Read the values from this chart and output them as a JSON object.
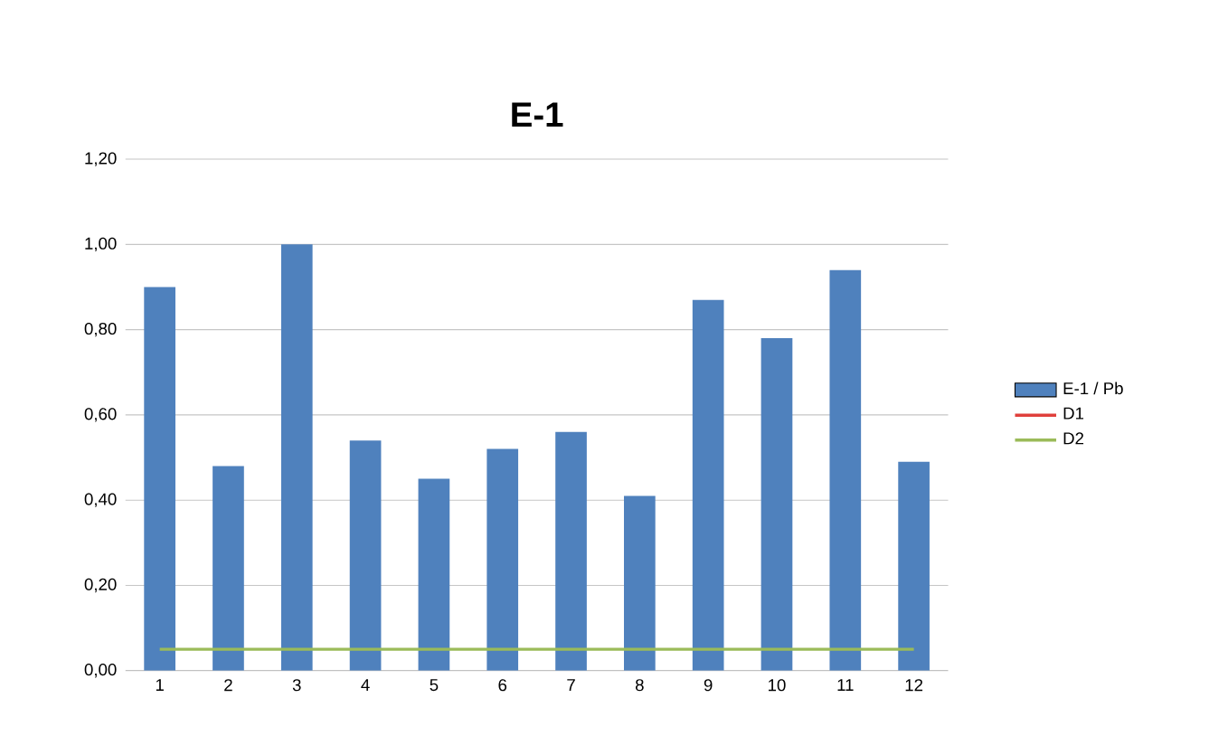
{
  "chart_data": {
    "type": "bar",
    "title": "E-1",
    "categories": [
      "1",
      "2",
      "3",
      "4",
      "5",
      "6",
      "7",
      "8",
      "9",
      "10",
      "11",
      "12"
    ],
    "series": [
      {
        "name": "E-1 / Pb",
        "color": "#4f81bd",
        "values": [
          0.9,
          0.48,
          1.0,
          0.54,
          0.45,
          0.52,
          0.56,
          0.41,
          0.87,
          0.78,
          0.94,
          0.49
        ]
      },
      {
        "name": "D1",
        "type": "line",
        "color": "#e0403c",
        "values": [
          null,
          null,
          null,
          null,
          null,
          null,
          null,
          null,
          null,
          null,
          null,
          null
        ]
      },
      {
        "name": "D2",
        "type": "line",
        "color": "#9bbb59",
        "values": [
          0.05,
          0.05,
          0.05,
          0.05,
          0.05,
          0.05,
          0.05,
          0.05,
          0.05,
          0.05,
          0.05,
          0.05
        ]
      }
    ],
    "ylim": [
      0,
      1.2
    ],
    "yticks": [
      {
        "value": 0,
        "label": "0,00"
      },
      {
        "value": 0.2,
        "label": "0,20"
      },
      {
        "value": 0.4,
        "label": "0,40"
      },
      {
        "value": 0.6,
        "label": "0,60"
      },
      {
        "value": 0.8,
        "label": "0,80"
      },
      {
        "value": 1.0,
        "label": "1,00"
      },
      {
        "value": 1.2,
        "label": "1,20"
      }
    ],
    "grid": "y",
    "legend": "right"
  }
}
